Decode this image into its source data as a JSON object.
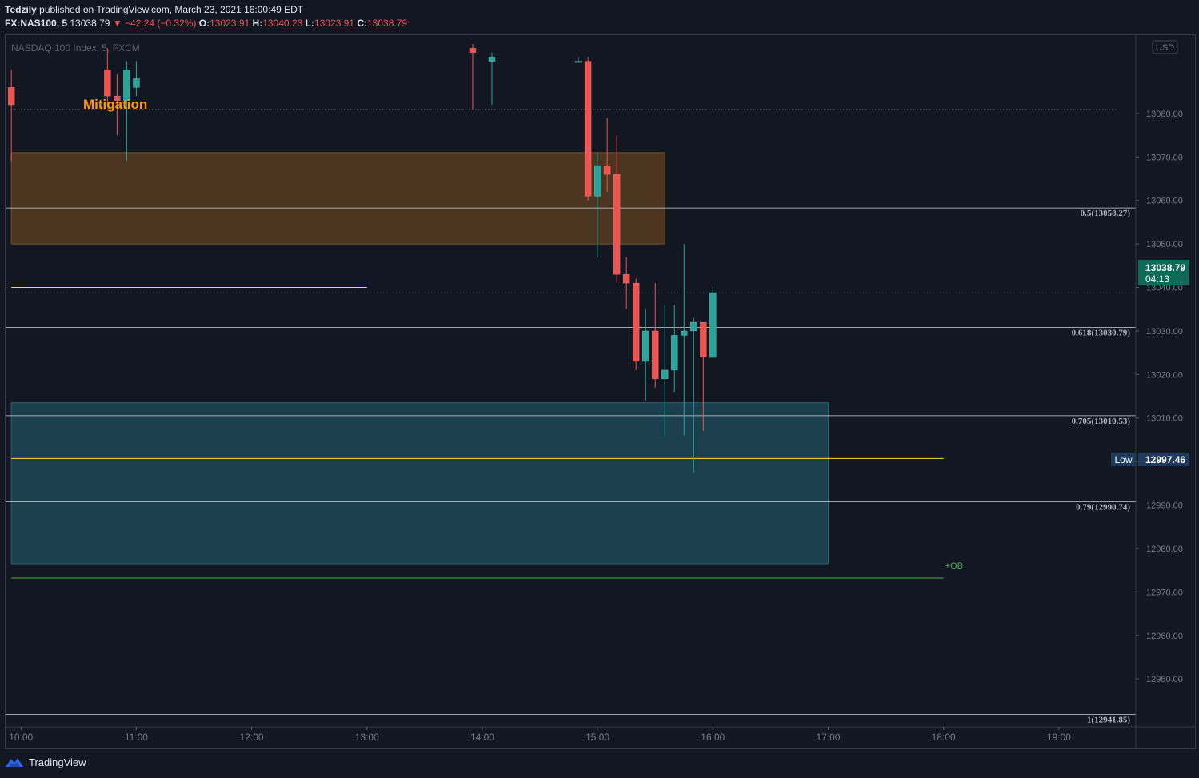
{
  "header": {
    "author": "Tedzily",
    "published_text": "published on TradingView.com, March 23, 2021 16:00:49 EDT",
    "symbol": "FX:NAS100, 5",
    "last": "13038.79",
    "change": "−42.24 (−0.32%)",
    "open_label": "O:",
    "open": "13023.91",
    "high_label": "H:",
    "high": "13040.23",
    "low_label": "L:",
    "low": "13023.91",
    "close_label": "C:",
    "close": "13038.79"
  },
  "instrument_title": "NASDAQ 100 Index, 5, FXCM",
  "currency": "USD",
  "annotations": {
    "mitigation": "Mitigation",
    "ob": "+OB"
  },
  "price_axis": {
    "ticks": [
      "13080.00",
      "13070.00",
      "13060.00",
      "13050.00",
      "13040.00",
      "13030.00",
      "13020.00",
      "13010.00",
      "13000.00",
      "12990.00",
      "12980.00",
      "12970.00",
      "12960.00",
      "12950.00"
    ],
    "last_price_label": "13038.79",
    "countdown": "04:13",
    "low_label": "Low",
    "low_value": "12997.46"
  },
  "time_axis": {
    "ticks": [
      "10:00",
      "11:00",
      "12:00",
      "13:00",
      "14:00",
      "15:00",
      "16:00",
      "17:00",
      "18:00",
      "19:00"
    ]
  },
  "fib_levels": [
    {
      "label": "0.5(13058.27)",
      "price": 13058.27
    },
    {
      "label": "0.618(13030.79)",
      "price": 13030.79
    },
    {
      "label": "0.705(13010.53)",
      "price": 13010.53
    },
    {
      "label": "0.79(12990.74)",
      "price": 12990.74
    },
    {
      "label": "1(12941.85)",
      "price": 12941.85
    }
  ],
  "zones": [
    {
      "name": "mitigation-zone",
      "top": 13071.0,
      "bottom": 13050.0,
      "from": "09:55",
      "to": "15:35",
      "color": "#4b3520"
    },
    {
      "name": "order-block-zone",
      "top": 13013.5,
      "bottom": 12976.5,
      "from": "09:55",
      "to": "17:00",
      "color": "#1b3f4d"
    }
  ],
  "hlines": [
    {
      "name": "yellow-level-upper",
      "price": 13040.0,
      "from": "09:55",
      "to": "13:00",
      "color": "#f5e12a"
    },
    {
      "name": "yellow-level-lower",
      "price": 13000.7,
      "from": "09:55",
      "to": "18:00",
      "color": "#f5e12a"
    },
    {
      "name": "ob-green-level",
      "price": 12973.2,
      "from": "09:55",
      "to": "18:00",
      "color": "#4caf50"
    },
    {
      "name": "dotted-high-level",
      "price": 13081.0,
      "from": "09:55",
      "to": "19:30",
      "color": "#5d606b"
    }
  ],
  "colors": {
    "up": "#26a69a",
    "down": "#ef5350",
    "last_price_bg": "#0d6b58",
    "low_bg": "#1e3a5f"
  },
  "chart_data": {
    "type": "candlestick",
    "series": [
      {
        "name": "FX:NAS100, 5",
        "candles": [
          {
            "t": "09:55",
            "o": 13086,
            "h": 13090,
            "l": 13069,
            "c": 13082
          },
          {
            "t": "10:45",
            "o": 13090,
            "h": 13095,
            "l": 13082,
            "c": 13084
          },
          {
            "t": "10:50",
            "o": 13084,
            "h": 13089,
            "l": 13075,
            "c": 13083
          },
          {
            "t": "10:55",
            "o": 13083,
            "h": 13092,
            "l": 13069,
            "c": 13090
          },
          {
            "t": "11:00",
            "o": 13086,
            "h": 13092,
            "l": 13084,
            "c": 13088
          },
          {
            "t": "13:55",
            "o": 13095,
            "h": 13096,
            "l": 13081,
            "c": 13094
          },
          {
            "t": "14:05",
            "o": 13092,
            "h": 13094,
            "l": 13082,
            "c": 13093
          },
          {
            "t": "14:50",
            "o": 13092,
            "h": 13093,
            "l": 13092,
            "c": 13092
          },
          {
            "t": "14:55",
            "o": 13092,
            "h": 13093,
            "l": 13060,
            "c": 13061
          },
          {
            "t": "15:00",
            "o": 13061,
            "h": 13071,
            "l": 13047,
            "c": 13068
          },
          {
            "t": "15:05",
            "o": 13068,
            "h": 13079,
            "l": 13062,
            "c": 13066
          },
          {
            "t": "15:10",
            "o": 13066,
            "h": 13075,
            "l": 13041,
            "c": 13043
          },
          {
            "t": "15:15",
            "o": 13043,
            "h": 13047,
            "l": 13035,
            "c": 13041
          },
          {
            "t": "15:20",
            "o": 13041,
            "h": 13042,
            "l": 13021,
            "c": 13023
          },
          {
            "t": "15:25",
            "o": 13023,
            "h": 13035,
            "l": 13014,
            "c": 13030
          },
          {
            "t": "15:30",
            "o": 13030,
            "h": 13041,
            "l": 13017,
            "c": 13019
          },
          {
            "t": "15:35",
            "o": 13019,
            "h": 13036,
            "l": 13006,
            "c": 13021
          },
          {
            "t": "15:40",
            "o": 13021,
            "h": 13036,
            "l": 13016,
            "c": 13029
          },
          {
            "t": "15:45",
            "o": 13029,
            "h": 13050,
            "l": 13006,
            "c": 13030
          },
          {
            "t": "15:50",
            "o": 13030,
            "h": 13033,
            "l": 12997.46,
            "c": 13032
          },
          {
            "t": "15:55",
            "o": 13032,
            "h": 13032,
            "l": 13007,
            "c": 13024
          },
          {
            "t": "16:00",
            "o": 13023.91,
            "h": 13040.23,
            "l": 13023.91,
            "c": 13038.79
          }
        ]
      }
    ],
    "xlabel": "",
    "ylabel": "",
    "ylim": [
      12939,
      13098
    ],
    "xlim": [
      "09:52",
      "19:40"
    ],
    "grid": false,
    "legend": "top-left"
  }
}
